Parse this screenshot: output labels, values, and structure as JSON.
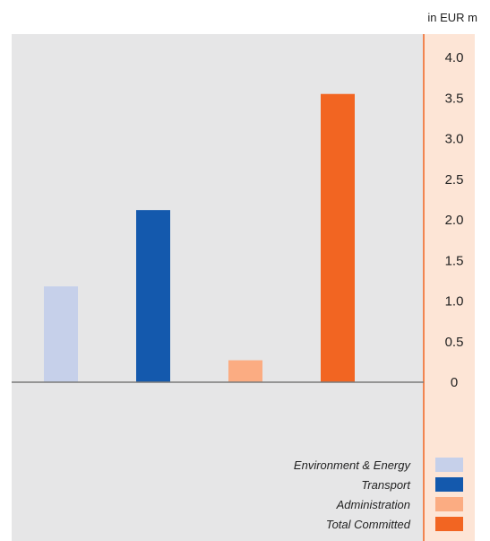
{
  "chart_data": {
    "type": "bar",
    "unit_label": "in EUR m",
    "categories": [
      "Environment & Energy",
      "Transport",
      "Administration",
      "Total Committed"
    ],
    "values": [
      1.18,
      2.12,
      0.27,
      3.55
    ],
    "colors": [
      "#c6d0ea",
      "#1459ad",
      "#fbac82",
      "#f26522"
    ],
    "ylim": [
      0,
      4.0
    ],
    "yticks": [
      "4.0",
      "3.5",
      "3.0",
      "2.5",
      "2.0",
      "1.5",
      "1.0",
      "0.5",
      "0"
    ],
    "ytick_values": [
      4.0,
      3.5,
      3.0,
      2.5,
      2.0,
      1.5,
      1.0,
      0.5,
      0
    ],
    "axis_position": "right",
    "legend_position": "bottom-right",
    "grid": false,
    "plot_background": "#e6e6e7",
    "axis_panel_background": "#fde5d6",
    "axis_line_color": "#f26522",
    "baseline_color": "#7a7a7a"
  }
}
